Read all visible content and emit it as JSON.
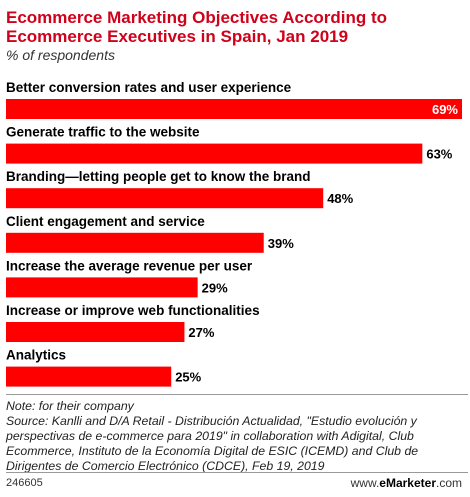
{
  "chart_title": "Ecommerce Marketing Objectives According to Ecommerce Executives in Spain, Jan 2019",
  "chart_subtitle": "% of respondents",
  "chart_data": {
    "type": "bar",
    "orientation": "horizontal",
    "categories": [
      "Better conversion rates and user experience",
      "Generate traffic to the website",
      "Branding—letting people get to know the brand",
      "Client engagement and service",
      "Increase the average revenue per user",
      "Increase or improve web functionalities",
      "Analytics"
    ],
    "values": [
      69,
      63,
      48,
      39,
      29,
      27,
      25
    ],
    "value_labels": [
      "69%",
      "63%",
      "48%",
      "39%",
      "29%",
      "27%",
      "25%"
    ],
    "xlim": [
      0,
      69
    ],
    "bar_color": "#ff0000",
    "grid": false
  },
  "note": "Note: for their company",
  "source": "Source: Kanlli and D/A Retail - Distribución Actualidad, \"Estudio evolución y perspectivas de e-commerce para 2019\" in collaboration with Adigital, Club Ecommerce, Instituto de la Economía Digital de ESIC (ICEMD) and Club de Dirigentes de Comercio Electrónico (CDCE), Feb 19, 2019",
  "footer": {
    "chart_id": "246605",
    "brand_prefix": "www.",
    "brand_name": "eMarketer",
    "brand_suffix": ".com"
  }
}
